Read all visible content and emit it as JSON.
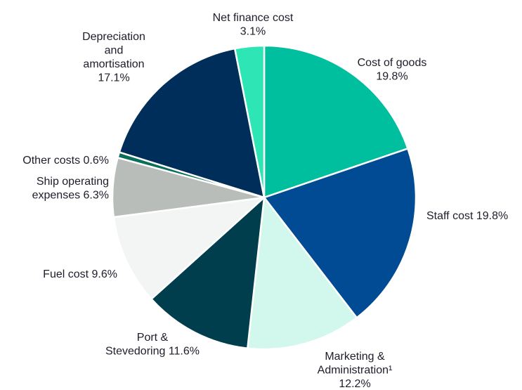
{
  "chart_data": {
    "type": "pie",
    "start_angle_deg": 0,
    "direction": "clockwise",
    "slices": [
      {
        "lines": [
          "Cost of goods",
          "19.8%"
        ],
        "value": 19.8,
        "color": "#00BF9F"
      },
      {
        "lines": [
          "Staff cost 19.8%"
        ],
        "value": 19.8,
        "color": "#004B93"
      },
      {
        "lines": [
          "Marketing &",
          "Administration¹",
          "12.2%"
        ],
        "value": 12.2,
        "color": "#D2F7EC"
      },
      {
        "lines": [
          "Port &",
          "Stevedoring 11.6%"
        ],
        "value": 11.6,
        "color": "#003D4D"
      },
      {
        "lines": [
          "Fuel cost 9.6%"
        ],
        "value": 9.6,
        "color": "#F3F5F5"
      },
      {
        "lines": [
          "Ship operating",
          "expenses 6.3%"
        ],
        "value": 6.3,
        "color": "#B9BDB9"
      },
      {
        "lines": [
          "Other costs 0.6%"
        ],
        "value": 0.6,
        "color": "#0B6E5A"
      },
      {
        "lines": [
          "Depreciation",
          "and",
          "amortisation",
          "17.1%"
        ],
        "value": 17.1,
        "color": "#002E5A"
      },
      {
        "lines": [
          "Net finance cost",
          "3.1%"
        ],
        "value": 3.1,
        "color": "#2EE6B5"
      }
    ]
  }
}
